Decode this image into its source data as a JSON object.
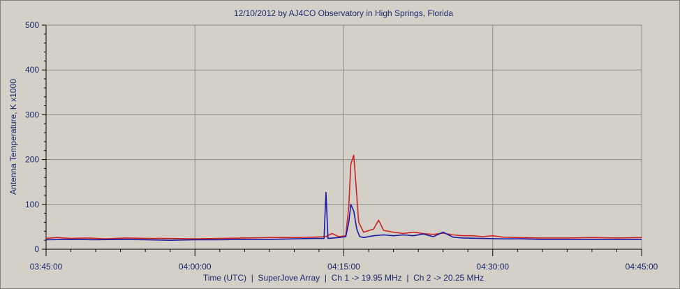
{
  "chart_data": {
    "type": "line",
    "title": "12/10/2012  by  AJ4CO Observatory  in  High Springs, Florida",
    "xlabel": "Time (UTC)  |  SuperJove Array  |  Ch 1 -> 19.95 MHz  |  Ch 2 -> 20.25 MHz",
    "ylabel": "Antenna Temperature, K x1000",
    "x_unit": "minutes after 03:45:00 UTC",
    "xlim": [
      0,
      60
    ],
    "ylim": [
      0,
      500
    ],
    "x_ticks": [
      {
        "value": 0,
        "label": "03:45:00"
      },
      {
        "value": 15,
        "label": "04:00:00"
      },
      {
        "value": 30,
        "label": "04:15:00"
      },
      {
        "value": 45,
        "label": "04:30:00"
      },
      {
        "value": 60,
        "label": "04:45:00"
      }
    ],
    "y_ticks": [
      {
        "value": 0,
        "label": "0"
      },
      {
        "value": 100,
        "label": "100"
      },
      {
        "value": 200,
        "label": "200"
      },
      {
        "value": 300,
        "label": "300"
      },
      {
        "value": 400,
        "label": "400"
      },
      {
        "value": 500,
        "label": "500"
      }
    ],
    "grid": true,
    "colors": {
      "plot_bg": "#d4d0c8",
      "grid": "#8c8c8c",
      "ch1": "#cc2222",
      "ch2": "#1a1aa8",
      "text": "#1a2a6e"
    },
    "series": [
      {
        "color": "#cc2222",
        "x": [
          0,
          1,
          2.5,
          4,
          6,
          8,
          10,
          12.5,
          15,
          17.5,
          20,
          22.5,
          25,
          27,
          28.2,
          28.8,
          29.5,
          30.2,
          30.5,
          30.7,
          31.0,
          31.2,
          31.5,
          32.0,
          33.0,
          33.5,
          34.0,
          35.0,
          36.0,
          37.0,
          38.0,
          39.0,
          40.0,
          41.0,
          42.0,
          43.0,
          44.0,
          45.0,
          46.0,
          47.5,
          50,
          52.5,
          55,
          57.5,
          60
        ],
        "y": [
          24,
          26,
          24,
          25,
          23,
          25,
          24,
          24,
          23,
          24,
          25,
          26,
          26,
          27,
          28,
          35,
          28,
          30,
          95,
          190,
          210,
          150,
          60,
          38,
          45,
          65,
          42,
          38,
          35,
          38,
          35,
          33,
          36,
          32,
          30,
          30,
          28,
          30,
          27,
          26,
          25,
          25,
          26,
          25,
          26
        ]
      },
      {
        "color": "#1a1aa8",
        "x": [
          0,
          2.5,
          5,
          7.5,
          10,
          12.5,
          15,
          17.5,
          20,
          22.5,
          25,
          27,
          28.0,
          28.2,
          28.4,
          29.5,
          30.2,
          30.5,
          30.7,
          31.0,
          31.3,
          31.6,
          32.0,
          33.0,
          34.0,
          35.0,
          36.0,
          37.0,
          38.0,
          39.0,
          40.0,
          41.0,
          42.0,
          44.0,
          46.0,
          48.0,
          50,
          55,
          60
        ],
        "y": [
          21,
          22,
          21,
          22,
          21,
          20,
          21,
          21,
          22,
          22,
          23,
          24,
          24,
          127,
          24,
          26,
          28,
          60,
          100,
          85,
          45,
          28,
          26,
          30,
          32,
          30,
          32,
          30,
          34,
          28,
          38,
          27,
          25,
          24,
          23,
          23,
          22,
          22,
          22
        ]
      }
    ]
  }
}
